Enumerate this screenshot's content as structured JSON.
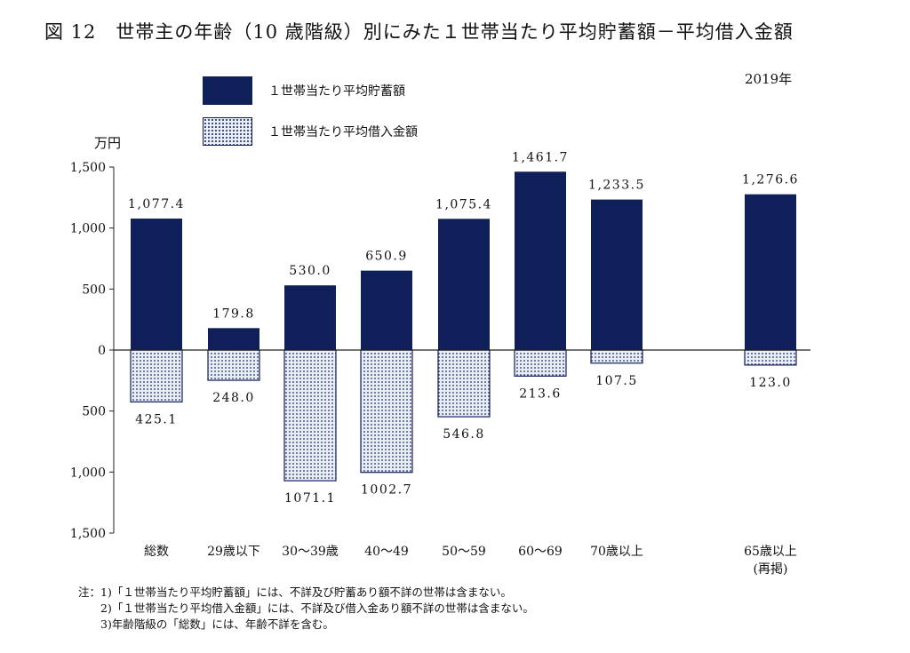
{
  "title": "図 12　世帯主の年齢（10 歳階級）別にみた１世帯当たり平均貯蓄額－平均借入金額",
  "year_label": "2019年",
  "unit_label": "万円",
  "legend": [
    {
      "label": "１世帯当たり平均貯蓄額"
    },
    {
      "label": "１世帯当たり平均借入金額"
    }
  ],
  "colors": {
    "savings": "#0e1f59",
    "debt_fill": "#e9eef6",
    "debt_dots": "#1c2a66"
  },
  "chart_data": {
    "type": "bar",
    "categories": [
      "総数",
      "29歳以下",
      "30～39歳",
      "40～49",
      "50～59",
      "60～69",
      "70歳以上",
      "65歳以上\n(再掲)"
    ],
    "series": [
      {
        "name": "１世帯当たり平均貯蓄額",
        "values": [
          1077.4,
          179.8,
          530.0,
          650.9,
          1075.4,
          1461.7,
          1233.5,
          1276.6
        ],
        "labels": [
          "1,077.4",
          "179.8",
          "530.0",
          "650.9",
          "1,075.4",
          "1,461.7",
          "1,233.5",
          "1,276.6"
        ]
      },
      {
        "name": "１世帯当たり平均借入金額",
        "values": [
          -425.1,
          -248.0,
          -1071.1,
          -1002.7,
          -546.8,
          -213.6,
          -107.5,
          -123.0
        ],
        "labels": [
          "425.1",
          "248.0",
          "1071.1",
          "1002.7",
          "546.8",
          "213.6",
          "107.5",
          "123.0"
        ]
      }
    ],
    "ylim": [
      -1500,
      1500
    ],
    "yticks": [
      1500,
      1000,
      500,
      0,
      -500,
      -1000,
      -1500
    ],
    "ytick_labels": [
      "1,500",
      "1,000",
      "500",
      "0",
      "500",
      "1,000",
      "1,500"
    ],
    "ylabel": "万円"
  },
  "notes": [
    "注：1)「１世帯当たり平均貯蓄額」には、不詳及び貯蓄あり額不詳の世帯は含まない。",
    "　　2)「１世帯当たり平均借入金額」には、不詳及び借入金あり額不詳の世帯は含まない。",
    "　　3)年齢階級の「総数」には、年齢不詳を含む。"
  ]
}
